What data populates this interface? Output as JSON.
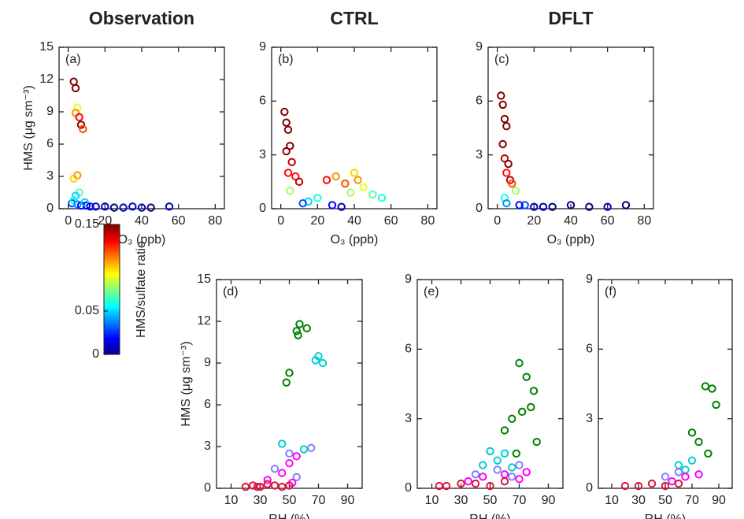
{
  "titles": [
    "Observation",
    "CTRL",
    "DFLT"
  ],
  "colorbar": {
    "label": "HMS/sulfate ratio",
    "lim": [
      0,
      0.15
    ],
    "ticks": [
      0,
      0.05,
      0.15
    ]
  },
  "chart_data": [
    {
      "type": "scatter",
      "label": "(a)",
      "ylabel": "HMS (μg sm⁻³)",
      "xlabel": "O₃ (ppb)",
      "xlim": [
        -5,
        85
      ],
      "xticks": [
        0,
        20,
        40,
        60,
        80
      ],
      "ylim": [
        0,
        15
      ],
      "yticks": [
        0,
        3,
        6,
        9,
        12,
        15
      ],
      "x": [
        3,
        4,
        5,
        4,
        6,
        7,
        8,
        5,
        3,
        6,
        4,
        10,
        15,
        20,
        25,
        30,
        35,
        40,
        45,
        55,
        2,
        3,
        5,
        7,
        9,
        12
      ],
      "y": [
        11.8,
        11.2,
        9.4,
        8.9,
        8.5,
        7.8,
        7.4,
        3.1,
        2.8,
        1.5,
        1.2,
        0.3,
        0.2,
        0.2,
        0.1,
        0.1,
        0.2,
        0.1,
        0.1,
        0.2,
        0.5,
        0.8,
        0.4,
        0.3,
        0.6,
        0.2
      ],
      "c": [
        0.15,
        0.15,
        0.09,
        0.11,
        0.13,
        0.15,
        0.12,
        0.11,
        0.1,
        0.07,
        0.05,
        0.01,
        0.01,
        0.01,
        0.0,
        0.01,
        0.01,
        0.01,
        0.0,
        0.01,
        0.03,
        0.06,
        0.04,
        0.02,
        0.05,
        0.02
      ]
    },
    {
      "type": "scatter",
      "label": "(b)",
      "xlabel": "O₃ (ppb)",
      "xlim": [
        -5,
        85
      ],
      "xticks": [
        0,
        20,
        40,
        60,
        80
      ],
      "ylim": [
        0,
        9
      ],
      "yticks": [
        0,
        3,
        6,
        9
      ],
      "x": [
        2,
        3,
        4,
        5,
        3,
        6,
        4,
        8,
        10,
        5,
        25,
        30,
        35,
        40,
        42,
        45,
        38,
        20,
        15,
        50,
        55,
        12,
        28,
        33
      ],
      "y": [
        5.4,
        4.8,
        4.4,
        3.5,
        3.2,
        2.6,
        2.0,
        1.8,
        1.5,
        1.0,
        1.6,
        1.8,
        1.4,
        2.0,
        1.6,
        1.2,
        0.9,
        0.6,
        0.4,
        0.8,
        0.6,
        0.3,
        0.2,
        0.1
      ],
      "c": [
        0.15,
        0.15,
        0.15,
        0.15,
        0.15,
        0.14,
        0.13,
        0.13,
        0.14,
        0.08,
        0.13,
        0.11,
        0.12,
        0.1,
        0.11,
        0.09,
        0.08,
        0.06,
        0.05,
        0.07,
        0.06,
        0.03,
        0.02,
        0.01
      ]
    },
    {
      "type": "scatter",
      "label": "(c)",
      "xlabel": "O₃ (ppb)",
      "xlim": [
        -5,
        85
      ],
      "xticks": [
        0,
        20,
        40,
        60,
        80
      ],
      "ylim": [
        0,
        9
      ],
      "yticks": [
        0,
        3,
        6,
        9
      ],
      "x": [
        2,
        3,
        4,
        5,
        3,
        4,
        6,
        5,
        7,
        8,
        10,
        4,
        15,
        20,
        30,
        40,
        50,
        60,
        70,
        5,
        12,
        25
      ],
      "y": [
        6.3,
        5.8,
        5.0,
        4.6,
        3.6,
        2.8,
        2.5,
        2.0,
        1.6,
        1.4,
        1.0,
        0.6,
        0.2,
        0.1,
        0.1,
        0.2,
        0.1,
        0.1,
        0.2,
        0.3,
        0.2,
        0.1
      ],
      "c": [
        0.15,
        0.15,
        0.15,
        0.15,
        0.15,
        0.14,
        0.15,
        0.13,
        0.14,
        0.12,
        0.08,
        0.06,
        0.03,
        0.01,
        0.0,
        0.0,
        0.0,
        0.01,
        0.0,
        0.04,
        0.02,
        0.01
      ]
    },
    {
      "type": "groups",
      "label": "(d)",
      "ylabel": "HMS (μg sm⁻³)",
      "xlabel": "RH (%)",
      "xlim": [
        0,
        100
      ],
      "xticks": [
        10,
        30,
        50,
        70,
        90
      ],
      "ylim": [
        0,
        15
      ],
      "yticks": [
        0,
        3,
        6,
        9,
        12,
        15
      ],
      "series": [
        {
          "color": "#008000",
          "x": [
            55,
            56,
            57,
            62,
            48,
            50
          ],
          "y": [
            11.3,
            11.0,
            11.8,
            11.5,
            7.6,
            8.3
          ]
        },
        {
          "color": "#00d0d0",
          "x": [
            70,
            73,
            68,
            60,
            45
          ],
          "y": [
            9.5,
            9.0,
            9.2,
            2.8,
            3.2
          ]
        },
        {
          "color": "#8080ff",
          "x": [
            40,
            50,
            65,
            55
          ],
          "y": [
            1.4,
            2.5,
            2.9,
            0.8
          ]
        },
        {
          "color": "#ff00ff",
          "x": [
            35,
            45,
            50,
            55,
            52
          ],
          "y": [
            0.6,
            1.1,
            1.8,
            2.3,
            0.4
          ]
        },
        {
          "color": "#dc143c",
          "x": [
            20,
            25,
            30,
            35,
            40,
            45,
            50,
            28
          ],
          "y": [
            0.1,
            0.2,
            0.1,
            0.3,
            0.2,
            0.1,
            0.2,
            0.1
          ]
        }
      ]
    },
    {
      "type": "groups",
      "label": "(e)",
      "xlabel": "RH (%)",
      "xlim": [
        0,
        100
      ],
      "xticks": [
        10,
        30,
        50,
        70,
        90
      ],
      "ylim": [
        0,
        9
      ],
      "yticks": [
        0,
        3,
        6,
        9
      ],
      "series": [
        {
          "color": "#008000",
          "x": [
            70,
            75,
            80,
            78,
            72,
            65,
            60,
            82,
            68
          ],
          "y": [
            5.4,
            4.8,
            4.2,
            3.5,
            3.3,
            3.0,
            2.5,
            2.0,
            1.5
          ]
        },
        {
          "color": "#00d0d0",
          "x": [
            50,
            55,
            60,
            65,
            45
          ],
          "y": [
            1.6,
            1.2,
            1.5,
            0.9,
            1.0
          ]
        },
        {
          "color": "#8080ff",
          "x": [
            40,
            55,
            65,
            70
          ],
          "y": [
            0.6,
            0.8,
            0.5,
            1.0
          ]
        },
        {
          "color": "#ff00ff",
          "x": [
            35,
            45,
            60,
            70,
            75
          ],
          "y": [
            0.3,
            0.5,
            0.6,
            0.4,
            0.7
          ]
        },
        {
          "color": "#dc143c",
          "x": [
            15,
            20,
            30,
            40,
            50,
            60
          ],
          "y": [
            0.1,
            0.1,
            0.2,
            0.2,
            0.1,
            0.3
          ]
        }
      ]
    },
    {
      "type": "groups",
      "label": "(f)",
      "xlabel": "RH (%)",
      "xlim": [
        0,
        100
      ],
      "xticks": [
        10,
        30,
        50,
        70,
        90
      ],
      "ylim": [
        0,
        9
      ],
      "yticks": [
        0,
        3,
        6,
        9
      ],
      "series": [
        {
          "color": "#008000",
          "x": [
            80,
            85,
            88,
            75,
            70,
            82
          ],
          "y": [
            4.4,
            4.3,
            3.6,
            2.0,
            2.4,
            1.5
          ]
        },
        {
          "color": "#00d0d0",
          "x": [
            60,
            65,
            70
          ],
          "y": [
            1.0,
            0.8,
            1.2
          ]
        },
        {
          "color": "#8080ff",
          "x": [
            50,
            60
          ],
          "y": [
            0.5,
            0.7
          ]
        },
        {
          "color": "#ff00ff",
          "x": [
            55,
            65,
            75
          ],
          "y": [
            0.3,
            0.5,
            0.6
          ]
        },
        {
          "color": "#dc143c",
          "x": [
            20,
            30,
            40,
            50,
            60
          ],
          "y": [
            0.1,
            0.1,
            0.2,
            0.1,
            0.2
          ]
        }
      ]
    }
  ]
}
